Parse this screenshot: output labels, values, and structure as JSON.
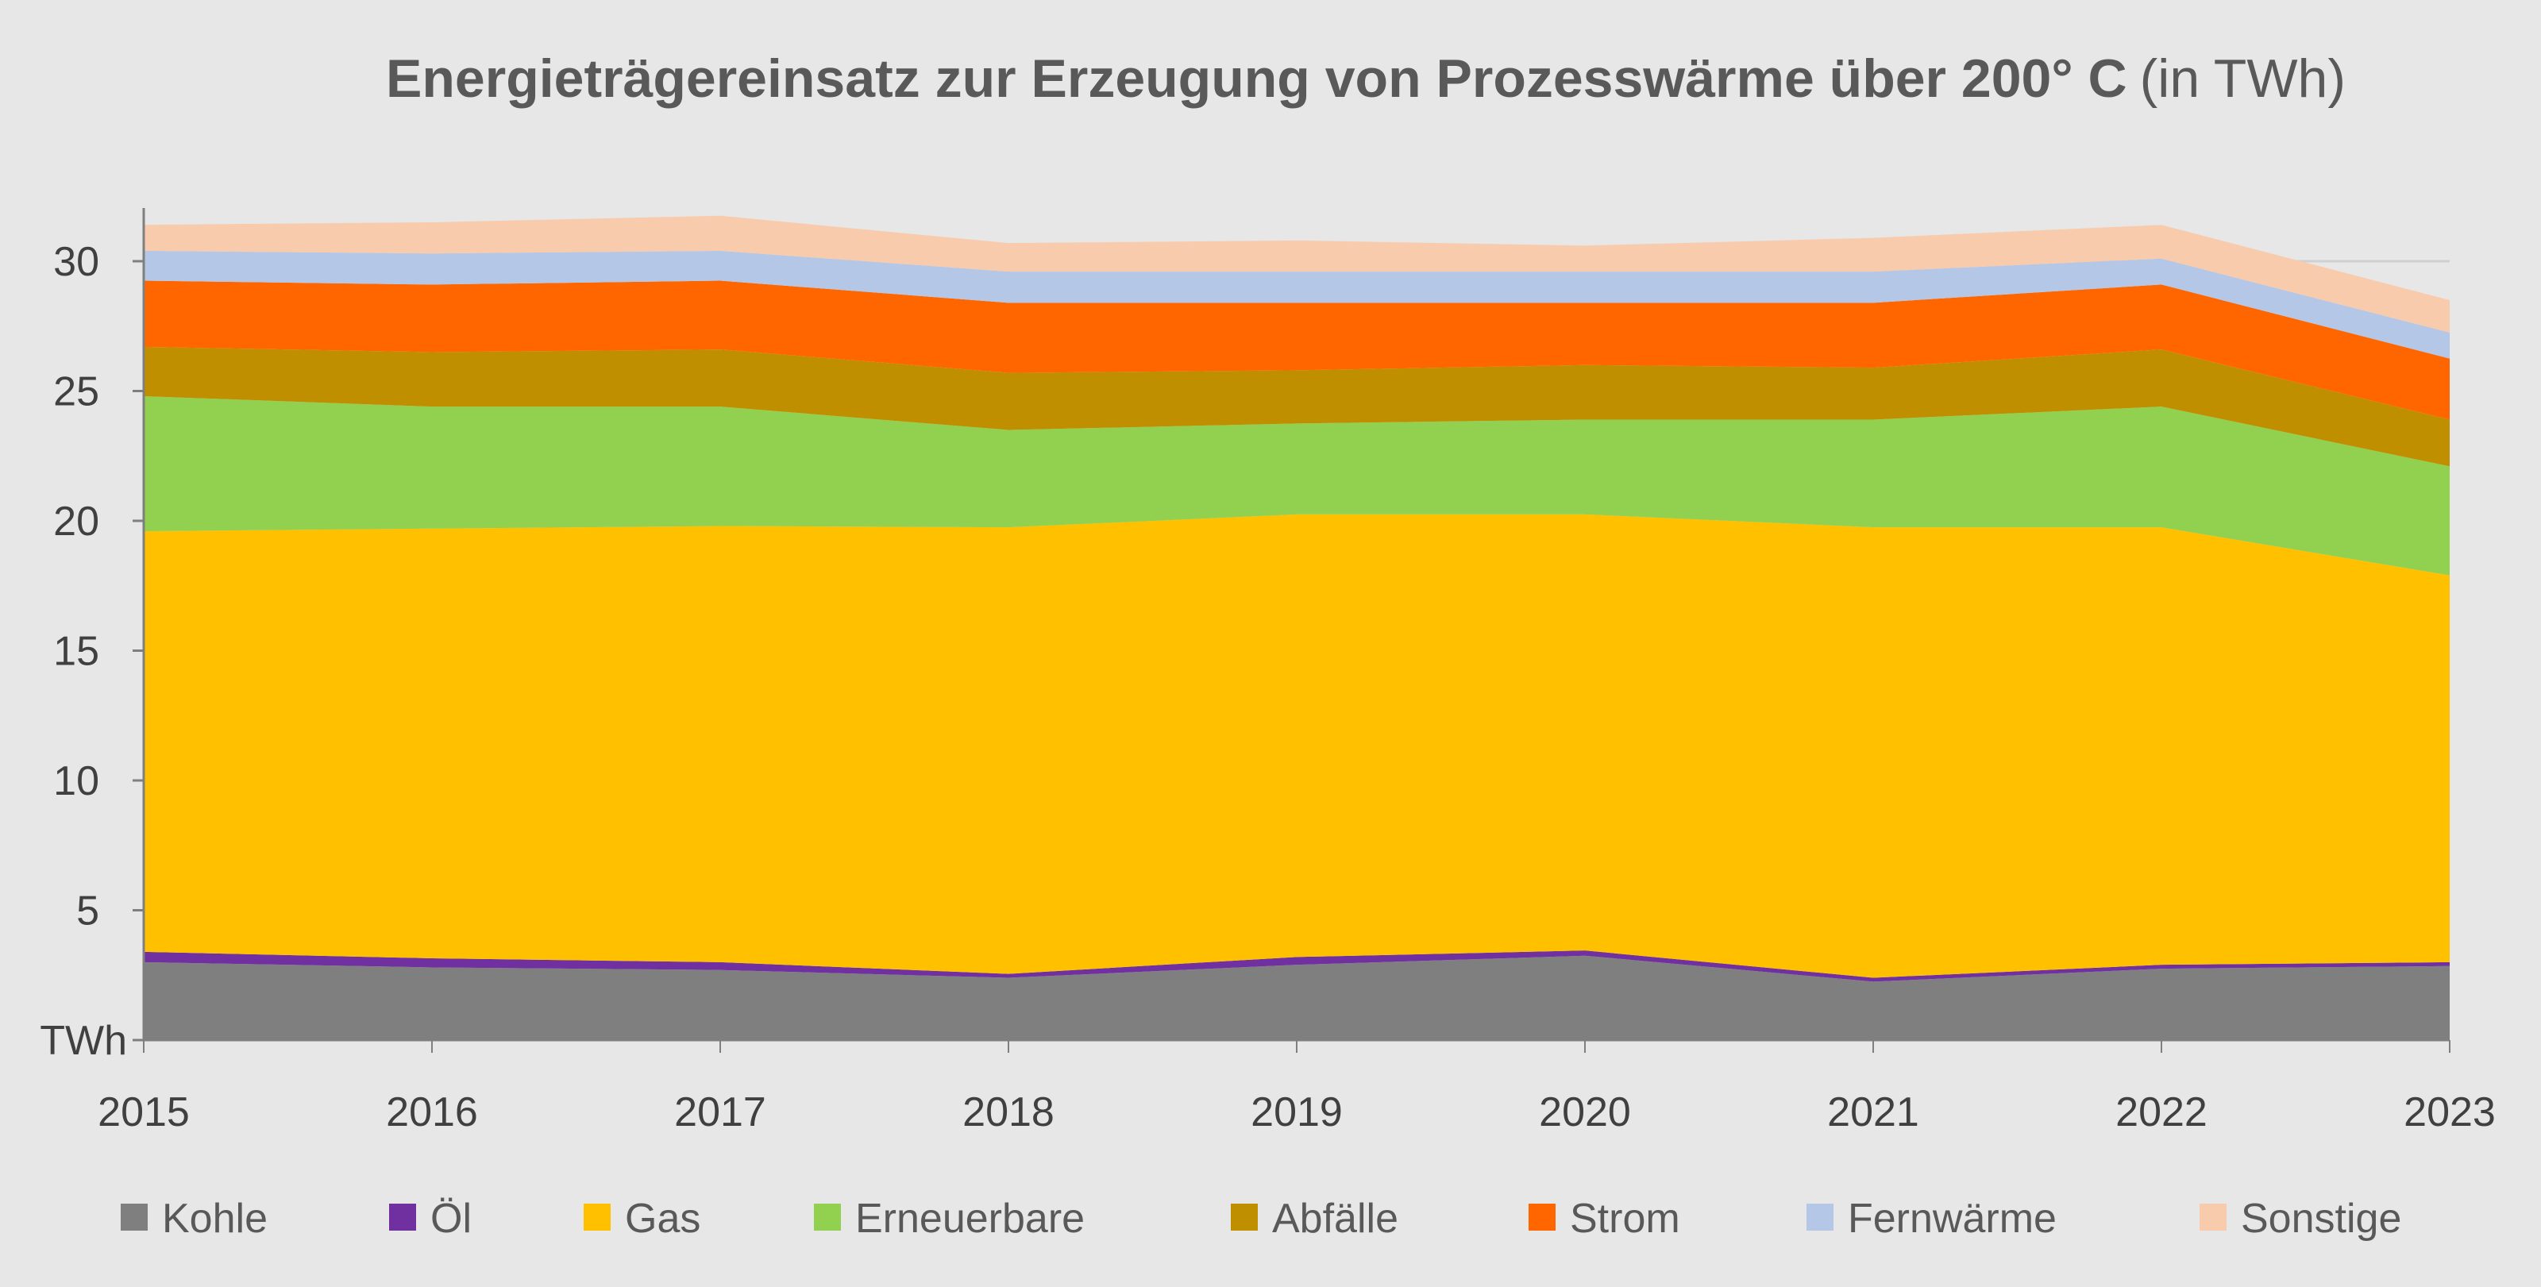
{
  "chart_data": {
    "type": "area",
    "stacked": true,
    "title": "Energieträgereinsatz zur Erzeugung von Prozesswärme über 200° C",
    "title_suffix": "(in TWh)",
    "xlabel": "",
    "ylabel": "",
    "y_unit_label": "TWh",
    "ylim": [
      0,
      32
    ],
    "yticks": [
      5,
      10,
      15,
      20,
      25,
      30
    ],
    "grid": false,
    "legend_position": "bottom",
    "categories": [
      "2015",
      "2016",
      "2017",
      "2018",
      "2019",
      "2020",
      "2021",
      "2022",
      "2023"
    ],
    "series": [
      {
        "name": "Kohle",
        "color": "#7f7f7f",
        "values": [
          3.0,
          2.8,
          2.7,
          2.4,
          2.9,
          3.25,
          2.25,
          2.75,
          2.85
        ]
      },
      {
        "name": "Öl",
        "color": "#7030a0",
        "values": [
          0.4,
          0.35,
          0.3,
          0.15,
          0.3,
          0.2,
          0.15,
          0.15,
          0.15
        ]
      },
      {
        "name": "Gas",
        "color": "#ffc000",
        "values": [
          16.2,
          16.55,
          16.8,
          17.2,
          17.05,
          16.8,
          17.35,
          16.85,
          14.9
        ]
      },
      {
        "name": "Erneuerbare",
        "color": "#92d050",
        "values": [
          5.2,
          4.7,
          4.6,
          3.75,
          3.5,
          3.65,
          4.15,
          4.65,
          4.2
        ]
      },
      {
        "name": "Abfälle",
        "color": "#bf8f00",
        "values": [
          1.9,
          2.1,
          2.2,
          2.2,
          2.05,
          2.1,
          2.0,
          2.2,
          1.8
        ]
      },
      {
        "name": "Strom",
        "color": "#ff6600",
        "values": [
          2.55,
          2.6,
          2.65,
          2.7,
          2.6,
          2.4,
          2.5,
          2.5,
          2.35
        ]
      },
      {
        "name": "Fernwärme",
        "color": "#b4c7e7",
        "values": [
          1.15,
          1.2,
          1.15,
          1.2,
          1.2,
          1.2,
          1.2,
          1.0,
          1.0
        ]
      },
      {
        "name": "Sonstige",
        "color": "#f8cbad",
        "values": [
          1.0,
          1.2,
          1.35,
          1.1,
          1.2,
          1.0,
          1.3,
          1.3,
          1.25
        ]
      }
    ]
  }
}
